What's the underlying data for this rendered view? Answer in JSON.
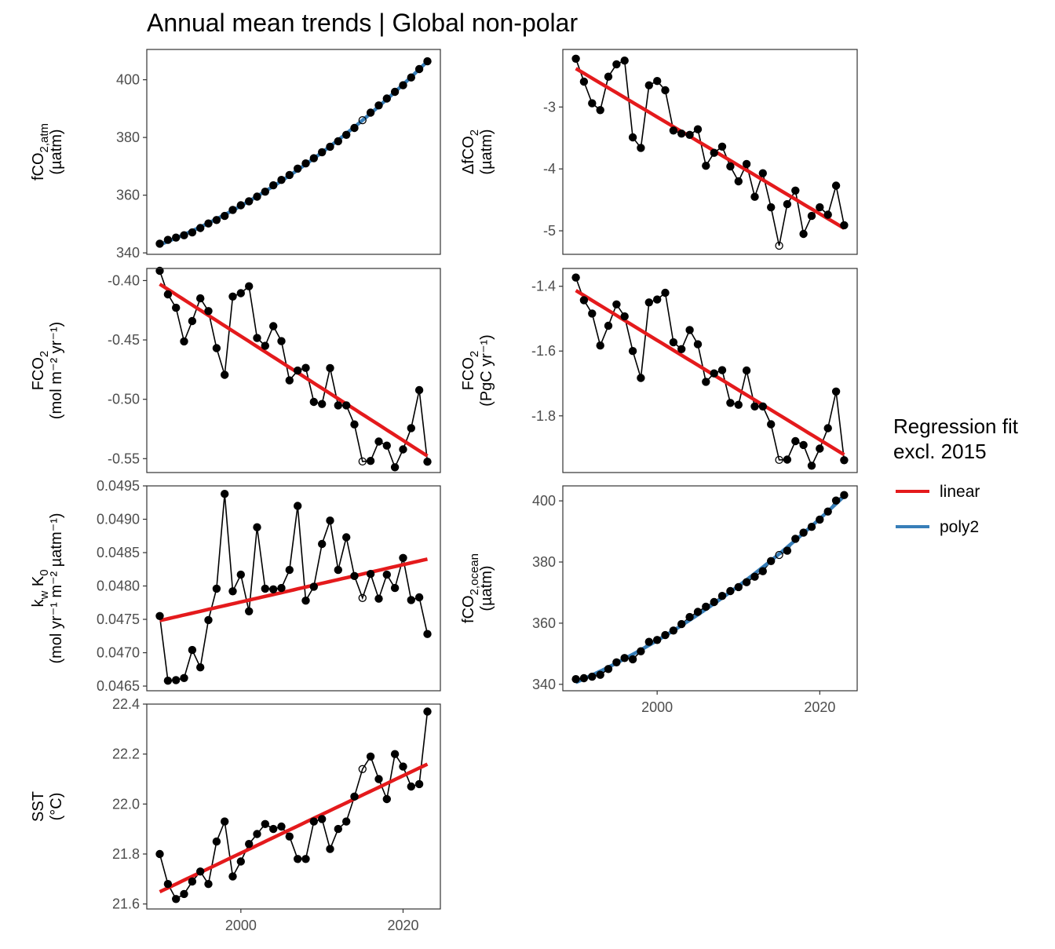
{
  "title": "Annual mean trends | Global non-polar",
  "legend": {
    "title_line1": "Regression fit",
    "title_line2": "excl. 2015",
    "items": [
      {
        "label": "linear",
        "color": "#e41a1c"
      },
      {
        "label": "poly2",
        "color": "#377eb8"
      }
    ]
  },
  "x_tick_labels": [
    "2000",
    "2020"
  ],
  "chart_data": {
    "type": "line",
    "years": [
      1990,
      1991,
      1992,
      1993,
      1994,
      1995,
      1996,
      1997,
      1998,
      1999,
      2000,
      2001,
      2002,
      2003,
      2004,
      2005,
      2006,
      2007,
      2008,
      2009,
      2010,
      2011,
      2012,
      2013,
      2014,
      2015,
      2016,
      2017,
      2018,
      2019,
      2020,
      2021,
      2022,
      2023
    ],
    "excluded_year": 2015,
    "xlim": [
      1988.4,
      2024.6
    ],
    "panels": [
      {
        "id": "fco2-atm",
        "ylabel_line1_main": "fCO",
        "ylabel_line1_sub": "2,atm",
        "ylabel_line2": "(µatm)",
        "ylim": [
          339.5,
          410.5
        ],
        "y_ticks": [
          340,
          360,
          380,
          400
        ],
        "y_tick_labels": [
          "340",
          "360",
          "380",
          "400"
        ],
        "fit": "poly2",
        "values": [
          343.2,
          344.5,
          345.3,
          346.1,
          347.1,
          348.6,
          350.2,
          351.4,
          352.8,
          354.9,
          356.5,
          357.9,
          359.5,
          361.2,
          363.4,
          365.3,
          367.0,
          369.2,
          371.0,
          372.8,
          374.9,
          376.8,
          378.7,
          380.9,
          383.3,
          386.0,
          388.6,
          391.1,
          393.5,
          395.8,
          398.1,
          400.8,
          403.7,
          406.4
        ]
      },
      {
        "id": "delta-fco2",
        "ylabel_line1_main": "ΔfCO",
        "ylabel_line1_sub": "2",
        "ylabel_line2": "(µatm)",
        "ylim": [
          -5.38,
          -2.07
        ],
        "y_ticks": [
          -5,
          -4,
          -3
        ],
        "y_tick_labels": [
          "-5",
          "-4",
          "-3"
        ],
        "fit": "linear",
        "values": [
          -2.22,
          -2.59,
          -2.94,
          -3.05,
          -2.51,
          -2.31,
          -2.25,
          -3.49,
          -3.66,
          -2.65,
          -2.58,
          -2.73,
          -3.38,
          -3.43,
          -3.45,
          -3.36,
          -3.95,
          -3.74,
          -3.64,
          -3.96,
          -4.2,
          -3.92,
          -4.45,
          -4.07,
          -4.62,
          -5.24,
          -4.57,
          -4.35,
          -5.05,
          -4.76,
          -4.62,
          -4.74,
          -4.27,
          -4.91
        ]
      },
      {
        "id": "fco2-flux-area",
        "ylabel_line1_main": "FCO",
        "ylabel_line1_sub": "2",
        "ylabel_line2": "(mol m⁻² yr⁻¹)",
        "ylim": [
          -0.5617,
          -0.3898
        ],
        "y_ticks": [
          -0.55,
          -0.5,
          -0.45,
          -0.4
        ],
        "y_tick_labels": [
          "-0.55",
          "-0.50",
          "-0.45",
          "-0.40"
        ],
        "fit": "linear",
        "values": [
          -0.3918,
          -0.4116,
          -0.4229,
          -0.4512,
          -0.4341,
          -0.415,
          -0.4257,
          -0.4569,
          -0.4794,
          -0.4135,
          -0.4106,
          -0.4048,
          -0.4484,
          -0.455,
          -0.4384,
          -0.451,
          -0.4841,
          -0.4758,
          -0.4736,
          -0.5022,
          -0.504,
          -0.4737,
          -0.5051,
          -0.5051,
          -0.5212,
          -0.5524,
          -0.5519,
          -0.5356,
          -0.539,
          -0.5573,
          -0.5422,
          -0.5243,
          -0.4923,
          -0.5526
        ]
      },
      {
        "id": "fco2-flux-total",
        "ylabel_line1_main": "FCO",
        "ylabel_line1_sub": "2",
        "ylabel_line2": "(PgC yr⁻¹)",
        "ylim": [
          -1.975,
          -1.345
        ],
        "y_ticks": [
          -1.8,
          -1.6,
          -1.4
        ],
        "y_tick_labels": [
          "-1.8",
          "-1.6",
          "-1.4"
        ],
        "fit": "linear",
        "values": [
          -1.373,
          -1.443,
          -1.484,
          -1.583,
          -1.522,
          -1.456,
          -1.493,
          -1.6,
          -1.683,
          -1.45,
          -1.441,
          -1.42,
          -1.573,
          -1.594,
          -1.535,
          -1.579,
          -1.695,
          -1.669,
          -1.659,
          -1.76,
          -1.766,
          -1.66,
          -1.771,
          -1.771,
          -1.826,
          -1.936,
          -1.935,
          -1.878,
          -1.89,
          -1.954,
          -1.901,
          -1.838,
          -1.725,
          -1.937
        ]
      },
      {
        "id": "kw-k0",
        "ylabel_line1_main": "k",
        "ylabel_line1_sub": "w",
        "ylabel_line1_main2": " K",
        "ylabel_line1_sub2": "0",
        "ylabel_line2": "(mol yr⁻¹ m⁻² µatm⁻¹)",
        "ylim": [
          0.04643,
          0.0495
        ],
        "y_ticks": [
          0.0465,
          0.047,
          0.0475,
          0.048,
          0.0485,
          0.049,
          0.0495
        ],
        "y_tick_labels": [
          "0.0465",
          "0.0470",
          "0.0475",
          "0.0480",
          "0.0485",
          "0.0490",
          "0.0495"
        ],
        "fit": "linear",
        "values": [
          0.04755,
          0.04658,
          0.04659,
          0.04662,
          0.04704,
          0.04678,
          0.04749,
          0.04796,
          0.04938,
          0.04792,
          0.04817,
          0.04762,
          0.04888,
          0.04796,
          0.04795,
          0.04797,
          0.04824,
          0.0492,
          0.04778,
          0.04799,
          0.04863,
          0.04898,
          0.04824,
          0.04873,
          0.04815,
          0.04782,
          0.04818,
          0.04781,
          0.04817,
          0.04797,
          0.04842,
          0.04779,
          0.04783,
          0.04728
        ]
      },
      {
        "id": "fco2-ocean",
        "ylabel_line1_main": "fCO",
        "ylabel_line1_sub": "2,ocean",
        "ylabel_line2": "(µatm)",
        "ylim": [
          337.9,
          404.9
        ],
        "y_ticks": [
          340,
          360,
          380,
          400
        ],
        "y_tick_labels": [
          "340",
          "360",
          "380",
          "400"
        ],
        "fit": "poly2",
        "values": [
          341.7,
          342.0,
          342.5,
          343.1,
          345.0,
          347.2,
          348.6,
          348.2,
          350.8,
          353.9,
          354.5,
          356.1,
          357.6,
          359.7,
          362.0,
          363.7,
          365.4,
          366.9,
          368.9,
          370.5,
          371.8,
          373.4,
          375.2,
          377.0,
          380.3,
          382.3,
          383.7,
          387.6,
          389.6,
          391.5,
          393.9,
          396.5,
          400.1,
          401.9
        ]
      },
      {
        "id": "sst",
        "ylabel_line1_main": "SST",
        "ylabel_line1_sub": "",
        "ylabel_line2": "(°C)",
        "ylim": [
          21.58,
          22.4
        ],
        "y_ticks": [
          21.6,
          21.8,
          22.0,
          22.2,
          22.4
        ],
        "y_tick_labels": [
          "21.6",
          "21.8",
          "22.0",
          "22.2",
          "22.4"
        ],
        "fit": "linear",
        "values": [
          21.8,
          21.68,
          21.62,
          21.64,
          21.69,
          21.73,
          21.68,
          21.85,
          21.93,
          21.71,
          21.77,
          21.84,
          21.88,
          21.92,
          21.9,
          21.91,
          21.87,
          21.78,
          21.78,
          21.93,
          21.94,
          21.82,
          21.9,
          21.93,
          22.03,
          22.14,
          22.19,
          22.1,
          22.02,
          22.2,
          22.15,
          22.07,
          22.08,
          22.37
        ]
      }
    ]
  }
}
